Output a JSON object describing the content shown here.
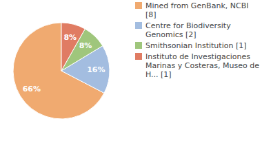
{
  "chart_data": {
    "type": "pie",
    "categories": [
      "Mined from GenBank, NCBI [8]",
      "Centre for Biodiversity Genomics [2]",
      "Smithsonian Institution [1]",
      "Instituto de Investigaciones Marinas y Costeras, Museo de H... [1]"
    ],
    "values": [
      66,
      16,
      8,
      8
    ],
    "value_labels": [
      "66%",
      "16%",
      "8%",
      "8%"
    ],
    "colors": [
      "#f0aa70",
      "#a3bde0",
      "#9fc67c",
      "#e07c63"
    ],
    "data_labels": true,
    "legend": "upper right"
  }
}
